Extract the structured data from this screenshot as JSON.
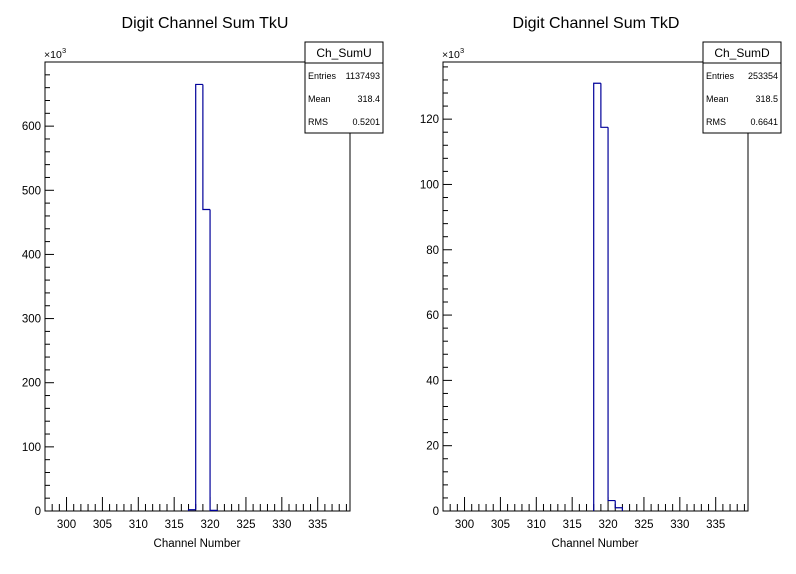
{
  "chart_data": [
    {
      "type": "histogram",
      "title": "Digit Channel Sum TkU",
      "xlabel": "Channel Number",
      "ylabel": "",
      "y_multiplier_label": "×10",
      "y_multiplier_exp": "3",
      "xlim": [
        297,
        339.5
      ],
      "ylim": [
        0,
        700
      ],
      "xticks": [
        300,
        305,
        310,
        315,
        320,
        325,
        330,
        335
      ],
      "yticks": [
        0,
        100,
        200,
        300,
        400,
        500,
        600
      ],
      "bin_edges": [
        317,
        318,
        319,
        320,
        321
      ],
      "counts": [
        2,
        665,
        470,
        1
      ],
      "line_color": "#000099",
      "stats": {
        "name": "Ch_SumU",
        "rows": [
          {
            "label": "Entries",
            "value": "1137493"
          },
          {
            "label": "Mean",
            "value": "318.4"
          },
          {
            "label": "RMS",
            "value": "0.5201"
          }
        ]
      }
    },
    {
      "type": "histogram",
      "title": "Digit Channel Sum TkD",
      "xlabel": "Channel Number",
      "ylabel": "",
      "y_multiplier_label": "×10",
      "y_multiplier_exp": "3",
      "xlim": [
        297,
        339.5
      ],
      "ylim": [
        0,
        137.5
      ],
      "xticks": [
        300,
        305,
        310,
        315,
        320,
        325,
        330,
        335
      ],
      "yticks": [
        0,
        20,
        40,
        60,
        80,
        100,
        120
      ],
      "bin_edges": [
        318,
        319,
        320,
        321,
        322
      ],
      "counts": [
        131,
        117.5,
        3.2,
        1.0
      ],
      "line_color": "#000099",
      "stats": {
        "name": "Ch_SumD",
        "rows": [
          {
            "label": "Entries",
            "value": "253354"
          },
          {
            "label": "Mean",
            "value": "318.5"
          },
          {
            "label": "RMS",
            "value": "0.6641"
          }
        ]
      }
    }
  ]
}
